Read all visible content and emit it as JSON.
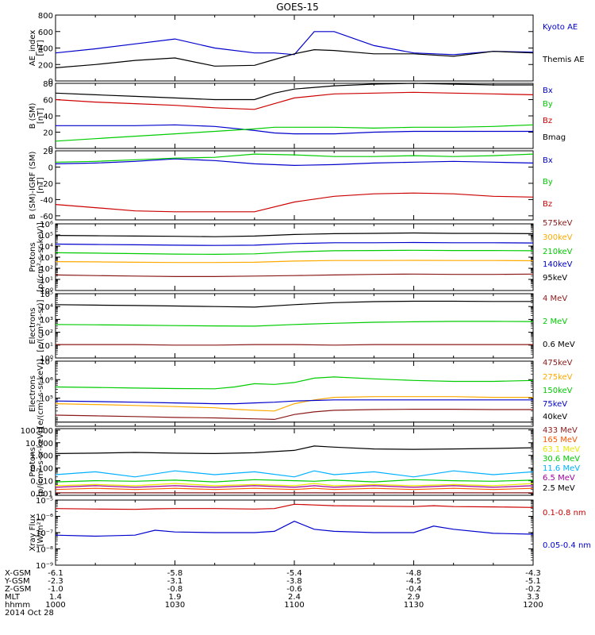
{
  "title": "GOES-15",
  "colors": {
    "black": "#000000",
    "blue": "#0000cc",
    "red": "#cc0000",
    "green": "#00cc00",
    "orange": "#ffaa00",
    "darkred": "#8b1a1a",
    "yellow": "#e8e800",
    "cyan": "#00b0ff",
    "orangered": "#ff5500",
    "purple": "#a000a0"
  },
  "chart_data": [
    {
      "type": "line",
      "ylabel": "AE_index\n[nT]",
      "yscale": "linear",
      "ylim": [
        0,
        800
      ],
      "yticks": [
        0,
        200,
        400,
        600,
        800
      ],
      "ytick_labels": [
        "0",
        "200",
        "400",
        "600",
        "800"
      ],
      "x": [
        0,
        10,
        20,
        30,
        40,
        50,
        55,
        60,
        65,
        70,
        80,
        90,
        100,
        110,
        120
      ],
      "series": [
        {
          "name": "Kyoto AE",
          "color": "#0000cc",
          "y": [
            340,
            390,
            450,
            510,
            400,
            340,
            340,
            320,
            600,
            600,
            430,
            340,
            320,
            360,
            350
          ]
        },
        {
          "name": "Themis AE",
          "color": "#000000",
          "y": [
            160,
            200,
            250,
            280,
            180,
            190,
            260,
            330,
            380,
            370,
            330,
            330,
            300,
            360,
            340
          ]
        }
      ]
    },
    {
      "type": "line",
      "ylabel": "B (SM)\n[nT]",
      "yscale": "linear",
      "ylim": [
        0,
        80
      ],
      "yticks": [
        0,
        20,
        40,
        60,
        80
      ],
      "ytick_labels": [
        "0",
        "20",
        "40",
        "60",
        "80"
      ],
      "x": [
        0,
        10,
        20,
        30,
        40,
        50,
        55,
        60,
        70,
        80,
        90,
        100,
        110,
        120
      ],
      "series": [
        {
          "name": "Bx",
          "color": "#0000cc",
          "y": [
            28,
            28,
            28,
            29,
            27,
            22,
            19,
            18,
            18,
            20,
            21,
            21,
            21,
            21
          ]
        },
        {
          "name": "By",
          "color": "#00cc00",
          "y": [
            9,
            12,
            15,
            18,
            21,
            24,
            26,
            26,
            26,
            25,
            26,
            26,
            27,
            29
          ]
        },
        {
          "name": "Bz",
          "color": "#cc0000",
          "y": [
            60,
            57,
            55,
            53,
            50,
            48,
            55,
            62,
            67,
            68,
            69,
            68,
            67,
            66
          ]
        },
        {
          "name": "Bmag",
          "color": "#000000",
          "y": [
            68,
            66,
            64,
            62,
            60,
            60,
            68,
            73,
            77,
            79,
            80,
            79,
            78,
            78
          ]
        }
      ]
    },
    {
      "type": "line",
      "ylabel": "B (SM)-IGRF (SM)\n[nT]",
      "yscale": "linear",
      "ylim": [
        -65,
        20
      ],
      "yticks": [
        -60,
        -40,
        -20,
        0,
        20
      ],
      "ytick_labels": [
        "-60",
        "-40",
        "-20",
        "0",
        "20"
      ],
      "x": [
        0,
        10,
        20,
        30,
        40,
        50,
        60,
        70,
        80,
        90,
        100,
        110,
        120
      ],
      "series": [
        {
          "name": "Bx",
          "color": "#0000cc",
          "y": [
            4,
            5,
            7,
            10,
            8,
            4,
            2,
            3,
            5,
            6,
            7,
            6,
            5
          ]
        },
        {
          "name": "By",
          "color": "#00cc00",
          "y": [
            6,
            7,
            9,
            11,
            12,
            16,
            15,
            13,
            13,
            14,
            13,
            14,
            16
          ]
        },
        {
          "name": "Bz",
          "color": "#cc0000",
          "y": [
            -46,
            -50,
            -54,
            -55,
            -55,
            -55,
            -43,
            -36,
            -33,
            -32,
            -33,
            -36,
            -37
          ]
        }
      ]
    },
    {
      "type": "line",
      "ylabel": "Protons\n[p/(cm²-s-sr-keV)]",
      "yscale": "log",
      "ylim": [
        1,
        1000000
      ],
      "yticks": [
        1,
        10,
        100,
        1000,
        10000,
        100000,
        1000000
      ],
      "ytick_labels": [
        "10⁰",
        "10¹",
        "10²",
        "10³",
        "10⁴",
        "10⁵",
        "10⁶"
      ],
      "x": [
        0,
        10,
        20,
        30,
        40,
        50,
        60,
        70,
        80,
        90,
        100,
        110,
        120
      ],
      "series": [
        {
          "name": "575keV",
          "color": "#8b1a1a",
          "y": [
            25,
            22,
            20,
            18,
            18,
            20,
            22,
            25,
            28,
            30,
            28,
            28,
            30
          ]
        },
        {
          "name": "300keV",
          "color": "#ffaa00",
          "y": [
            400,
            380,
            350,
            330,
            330,
            350,
            450,
            500,
            500,
            520,
            500,
            500,
            480
          ]
        },
        {
          "name": "210keV",
          "color": "#00cc00",
          "y": [
            2500,
            2300,
            2100,
            1900,
            1800,
            2000,
            3000,
            3800,
            4000,
            4200,
            4000,
            4000,
            3800
          ]
        },
        {
          "name": "140keV",
          "color": "#0000cc",
          "y": [
            15000,
            14000,
            13000,
            12000,
            11500,
            12000,
            17000,
            20000,
            20000,
            21000,
            20000,
            20000,
            19000
          ]
        },
        {
          "name": "95keV",
          "color": "#000000",
          "y": [
            90000,
            85000,
            80000,
            75000,
            70000,
            80000,
            110000,
            130000,
            140000,
            150000,
            140000,
            140000,
            130000
          ]
        }
      ]
    },
    {
      "type": "line",
      "ylabel": "Electrons\n[e/(cm²-s-sr)]",
      "yscale": "log",
      "ylim": [
        1,
        100000
      ],
      "yticks": [
        1,
        10,
        100,
        1000,
        10000,
        100000
      ],
      "ytick_labels": [
        "10⁰",
        "10¹",
        "10²",
        "10³",
        "10⁴",
        "10⁵"
      ],
      "x": [
        0,
        10,
        20,
        30,
        40,
        50,
        60,
        70,
        80,
        90,
        100,
        110,
        120
      ],
      "series": [
        {
          "name": "4 MeV",
          "color": "#8b1a1a",
          "y": [
            11,
            11,
            11,
            10,
            10,
            11,
            11,
            10,
            11,
            11,
            11,
            11,
            11
          ]
        },
        {
          "name": "2 MeV",
          "color": "#00cc00",
          "y": [
            400,
            380,
            360,
            330,
            310,
            300,
            400,
            500,
            600,
            650,
            700,
            700,
            680
          ]
        },
        {
          "name": "0.6 MeV",
          "color": "#000000",
          "y": [
            14000,
            13000,
            12000,
            11000,
            10000,
            9000,
            14000,
            20000,
            24000,
            26000,
            26000,
            25000,
            25000
          ]
        }
      ]
    },
    {
      "type": "line",
      "ylabel": "Electrons\n[e/(cm²-s-sr-keV)]",
      "yscale": "log",
      "ylim": [
        3000,
        10000000
      ],
      "yticks": [
        100000,
        1000000,
        10000000
      ],
      "ytick_labels": [
        "10⁵",
        "10⁶",
        "10⁷"
      ],
      "x": [
        0,
        10,
        20,
        30,
        40,
        45,
        50,
        55,
        60,
        65,
        70,
        80,
        90,
        100,
        110,
        120
      ],
      "series": [
        {
          "name": "475keV",
          "color": "#8b1a1a",
          "y": [
            12000,
            11000,
            10000,
            9000,
            8500,
            8000,
            7500,
            7000,
            13000,
            18000,
            22000,
            24000,
            25000,
            25000,
            24000,
            24000
          ]
        },
        {
          "name": "275keV",
          "color": "#ffaa00",
          "y": [
            50000,
            45000,
            40000,
            35000,
            30000,
            25000,
            22000,
            20000,
            50000,
            80000,
            110000,
            120000,
            120000,
            120000,
            110000,
            110000
          ]
        },
        {
          "name": "150keV",
          "color": "#00cc00",
          "y": [
            400000,
            380000,
            350000,
            330000,
            320000,
            400000,
            600000,
            550000,
            700000,
            1200000,
            1400000,
            1100000,
            900000,
            800000,
            800000,
            900000
          ]
        },
        {
          "name": "75keV",
          "color": "#0000cc",
          "y": [
            70000,
            65000,
            60000,
            55000,
            50000,
            50000,
            55000,
            60000,
            70000,
            75000,
            80000,
            80000,
            80000,
            80000,
            80000,
            80000
          ]
        },
        {
          "name": "40keV",
          "color": "#000000",
          "y": [
            5000,
            5000,
            5000,
            5000,
            5000,
            5000,
            5000,
            5000,
            5000,
            5000,
            5000,
            5000,
            5000,
            5000,
            5000,
            5000
          ]
        }
      ]
    },
    {
      "type": "line",
      "ylabel": "Protons\n[p/(cm²-s-sr-keV)]",
      "yscale": "log",
      "ylim": [
        0.0007,
        130
      ],
      "yticks": [
        0.001,
        0.01,
        0.1,
        1,
        10,
        100
      ],
      "ytick_labels": [
        "0.001",
        "0.010",
        "0.100",
        "1.000",
        "10.000",
        "100.000"
      ],
      "x": [
        0,
        10,
        20,
        30,
        40,
        50,
        60,
        65,
        70,
        80,
        90,
        100,
        110,
        120
      ],
      "series": [
        {
          "name": "433 MeV",
          "color": "#8b1a1a",
          "y": [
            0.0011,
            0.0011,
            0.0011,
            0.0011,
            0.0011,
            0.0011,
            0.0011,
            0.0011,
            0.0011,
            0.0011,
            0.0011,
            0.0011,
            0.0011,
            0.0011
          ]
        },
        {
          "name": "165 MeV",
          "color": "#ff5500",
          "y": [
            0.002,
            0.0025,
            0.002,
            0.0025,
            0.002,
            0.0025,
            0.002,
            0.0025,
            0.002,
            0.0025,
            0.002,
            0.0025,
            0.002,
            0.0025
          ]
        },
        {
          "name": "63.1 MeV",
          "color": "#e8e800",
          "y": [
            0.004,
            0.005,
            0.004,
            0.006,
            0.004,
            0.005,
            0.004,
            0.006,
            0.004,
            0.005,
            0.004,
            0.005,
            0.004,
            0.006
          ]
        },
        {
          "name": "30.6 MeV",
          "color": "#00cc00",
          "y": [
            0.008,
            0.01,
            0.009,
            0.011,
            0.008,
            0.012,
            0.01,
            0.009,
            0.011,
            0.008,
            0.012,
            0.01,
            0.009,
            0.011
          ]
        },
        {
          "name": "11.6 MeV",
          "color": "#00b0ff",
          "y": [
            0.03,
            0.05,
            0.02,
            0.06,
            0.03,
            0.05,
            0.02,
            0.06,
            0.03,
            0.05,
            0.02,
            0.06,
            0.03,
            0.05
          ]
        },
        {
          "name": "6.5 MeV",
          "color": "#a000a0",
          "y": [
            0.003,
            0.004,
            0.003,
            0.004,
            0.003,
            0.004,
            0.003,
            0.004,
            0.003,
            0.004,
            0.003,
            0.004,
            0.003,
            0.004
          ]
        },
        {
          "name": "2.5 MeV",
          "color": "#000000",
          "y": [
            1.4,
            1.5,
            1.7,
            1.5,
            1.4,
            1.6,
            2.5,
            5.5,
            4.5,
            3.2,
            3.0,
            3.2,
            3.5,
            4.0
          ]
        }
      ]
    },
    {
      "type": "line",
      "ylabel": "Xray Flux\n[W/m²]",
      "yscale": "log",
      "ylim": [
        1e-09,
        1e-05
      ],
      "yticks": [
        1e-09,
        1e-08,
        1e-07,
        1e-06,
        1e-05
      ],
      "ytick_labels": [
        "10⁻⁹",
        "10⁻⁸",
        "10⁻⁷",
        "10⁻⁶",
        "10⁻⁵"
      ],
      "x": [
        0,
        10,
        20,
        25,
        30,
        40,
        50,
        55,
        60,
        65,
        70,
        80,
        90,
        95,
        100,
        110,
        120
      ],
      "series": [
        {
          "name": "0.1-0.8 nm",
          "color": "#cc0000",
          "y": [
            3e-06,
            2.8e-06,
            2.7e-06,
            2.9e-06,
            3e-06,
            3e-06,
            2.8e-06,
            3e-06,
            5.5e-06,
            5e-06,
            4.5e-06,
            4.2e-06,
            4e-06,
            4.5e-06,
            4e-06,
            3.8e-06,
            3.5e-06
          ]
        },
        {
          "name": "0.05-0.4 nm",
          "color": "#0000cc",
          "y": [
            7e-08,
            6e-08,
            7e-08,
            1.4e-07,
            1.1e-07,
            1e-07,
            1e-07,
            1.2e-07,
            5e-07,
            1.6e-07,
            1.2e-07,
            1e-07,
            1e-07,
            2.5e-07,
            1.6e-07,
            9e-08,
            8e-08
          ]
        }
      ]
    }
  ],
  "xaxis": {
    "rows": [
      {
        "label": "X-GSM",
        "values": [
          "-6.1",
          "-5.8",
          "-5.4",
          "-4.8",
          "-4.3"
        ]
      },
      {
        "label": "Y-GSM",
        "values": [
          "-2.3",
          "-3.1",
          "-3.8",
          "-4.5",
          "-5.1"
        ]
      },
      {
        "label": "Z-GSM",
        "values": [
          "-1.0",
          "-0.8",
          "-0.6",
          "-0.4",
          "-0.2"
        ]
      },
      {
        "label": "MLT",
        "values": [
          "1.4",
          "1.9",
          "2.4",
          "2.9",
          "3.3"
        ]
      },
      {
        "label": "hhmm",
        "values": [
          "1000",
          "1030",
          "1100",
          "1130",
          "1200"
        ]
      }
    ],
    "tick_positions": [
      0,
      30,
      60,
      90,
      120
    ],
    "date": "2014 Oct 28"
  }
}
